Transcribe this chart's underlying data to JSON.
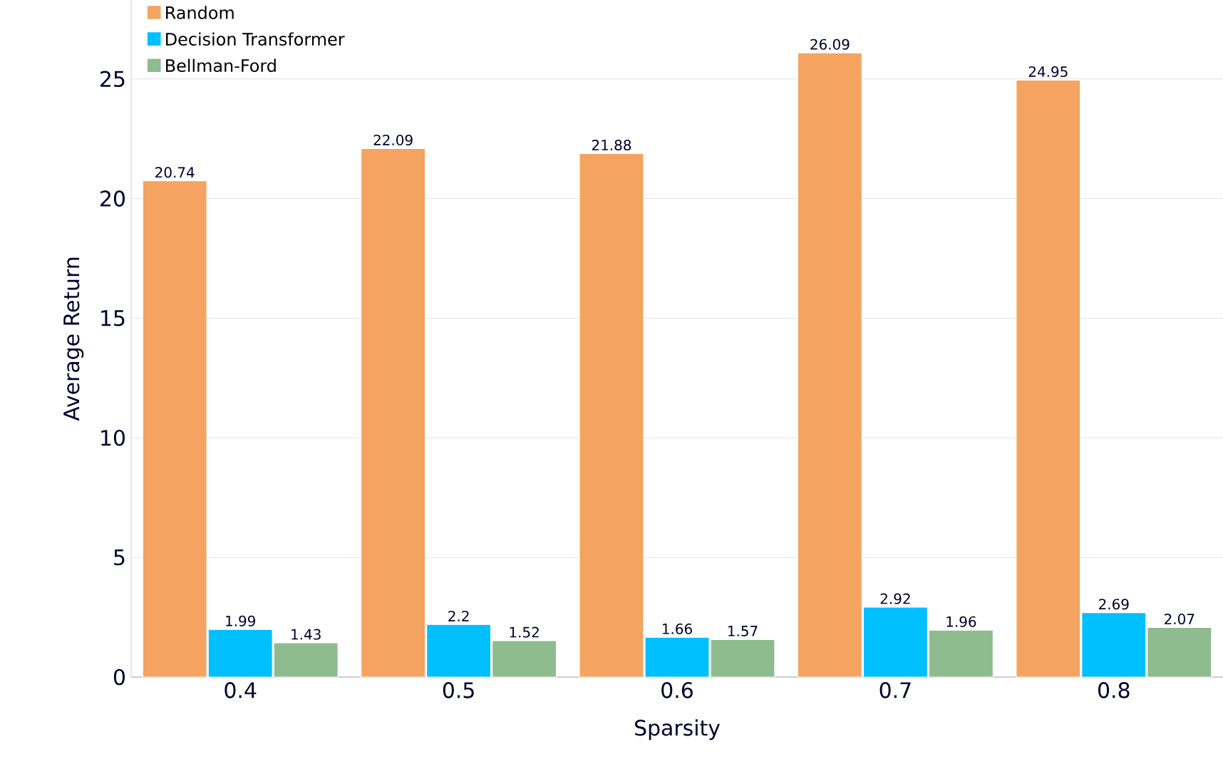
{
  "chart_data": {
    "type": "bar",
    "xlabel": "Sparsity",
    "ylabel": "Average Return",
    "categories": [
      "0.4",
      "0.5",
      "0.6",
      "0.7",
      "0.8"
    ],
    "series": [
      {
        "name": "Random",
        "color": "#f4a460",
        "values": [
          20.74,
          22.09,
          21.88,
          26.09,
          24.95
        ]
      },
      {
        "name": "Decision Transformer",
        "color": "#00bfff",
        "values": [
          1.99,
          2.2,
          1.66,
          2.92,
          2.69
        ]
      },
      {
        "name": "Bellman-Ford",
        "color": "#8fbc8f",
        "values": [
          1.43,
          1.52,
          1.57,
          1.96,
          2.07
        ]
      }
    ],
    "ylim": [
      0,
      28.3
    ],
    "yticks": [
      0,
      5,
      10,
      15,
      20,
      25
    ],
    "grid": "y",
    "legend": "top left",
    "data_labels": true
  }
}
